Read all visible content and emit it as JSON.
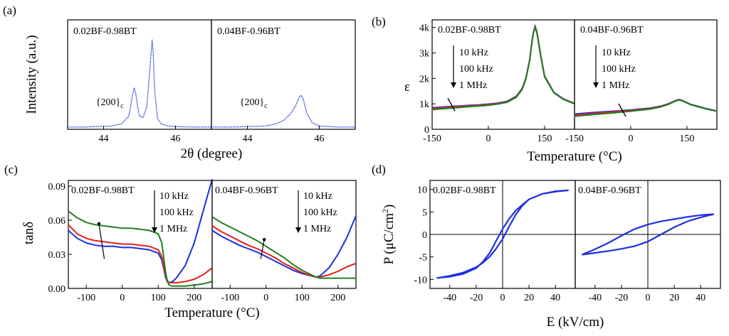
{
  "figure": {
    "panel_tags": [
      "(a)",
      "(b)",
      "(c)",
      "(d)"
    ]
  },
  "chart_data": [
    {
      "panel": "(a)",
      "type": "line",
      "ylabel": "Intensity (a.u.)",
      "xlabel": "2θ (degree)",
      "xlim": [
        43,
        47
      ],
      "ylim": [
        0,
        1
      ],
      "xticks": [
        "44",
        "46"
      ],
      "series_color": "#1f2fe0",
      "subplots": [
        {
          "label": "0.02BF-0.98BT",
          "annotation": {
            "base": "{200}",
            "sub": "c",
            "x": 44.5,
            "y": 0.22
          },
          "series": [
            {
              "name": "intensity",
              "x": [
                43.0,
                43.4,
                43.8,
                44.2,
                44.5,
                44.7,
                44.8,
                44.85,
                44.9,
                44.95,
                45.0,
                45.1,
                45.2,
                45.3,
                45.35,
                45.38,
                45.42,
                45.5,
                45.6,
                45.8,
                46.0,
                46.5,
                47.0
              ],
              "y": [
                0.02,
                0.02,
                0.025,
                0.03,
                0.05,
                0.12,
                0.3,
                0.38,
                0.32,
                0.2,
                0.12,
                0.11,
                0.2,
                0.6,
                0.82,
                0.7,
                0.35,
                0.1,
                0.05,
                0.03,
                0.025,
                0.02,
                0.02
              ]
            }
          ]
        },
        {
          "label": "0.04BF-0.96BT",
          "annotation": {
            "base": "{200}",
            "sub": "c",
            "x": 44.5,
            "y": 0.22
          },
          "series": [
            {
              "name": "intensity",
              "x": [
                43.0,
                43.5,
                44.0,
                44.5,
                44.8,
                45.0,
                45.2,
                45.35,
                45.45,
                45.5,
                45.55,
                45.65,
                45.8,
                46.0,
                46.5,
                47.0
              ],
              "y": [
                0.02,
                0.02,
                0.025,
                0.03,
                0.05,
                0.08,
                0.14,
                0.22,
                0.3,
                0.31,
                0.28,
                0.15,
                0.06,
                0.03,
                0.02,
                0.02
              ]
            }
          ]
        }
      ]
    },
    {
      "panel": "(b)",
      "type": "line",
      "ylabel": "ε",
      "xlabel": "Temperature (°C)",
      "xlim": [
        -150,
        230
      ],
      "ylim": [
        0,
        4300
      ],
      "xticks": [
        "-150",
        "0",
        "150",
        "-150",
        "0",
        "150"
      ],
      "yticks": [
        "0",
        "1k",
        "2k",
        "3k",
        "4k"
      ],
      "frequencies": [
        "10 kHz",
        "100 kHz",
        "1 MHz"
      ],
      "series_colors": [
        "#1f2fe0",
        "#e02020",
        "#208020"
      ],
      "subplots": [
        {
          "label": "0.02BF-0.98BT",
          "x": [
            -150,
            -125,
            -100,
            -75,
            -50,
            -25,
            0,
            25,
            50,
            75,
            90,
            100,
            110,
            115,
            120,
            125,
            130,
            140,
            150,
            175,
            200,
            230
          ],
          "series": [
            {
              "name": "10 kHz",
              "values": [
                850,
                875,
                895,
                920,
                940,
                960,
                990,
                1030,
                1100,
                1300,
                1600,
                2000,
                2700,
                3300,
                3800,
                4050,
                3800,
                2900,
                2100,
                1450,
                1200,
                1020
              ]
            },
            {
              "name": "100 kHz",
              "values": [
                820,
                845,
                870,
                895,
                920,
                940,
                970,
                1010,
                1080,
                1280,
                1580,
                1980,
                2680,
                3280,
                3780,
                4030,
                3780,
                2880,
                2080,
                1440,
                1190,
                1010
              ]
            },
            {
              "name": "1 MHz",
              "values": [
                770,
                800,
                830,
                860,
                890,
                915,
                945,
                990,
                1060,
                1260,
                1560,
                1960,
                2660,
                3260,
                3760,
                4010,
                3760,
                2860,
                2070,
                1430,
                1180,
                1000
              ]
            }
          ]
        },
        {
          "label": "0.04BF-0.96BT",
          "x": [
            -150,
            -100,
            -50,
            0,
            50,
            80,
            100,
            120,
            130,
            140,
            160,
            200,
            230
          ],
          "series": [
            {
              "name": "10 kHz",
              "values": [
                600,
                660,
                710,
                760,
                830,
                910,
                1000,
                1130,
                1170,
                1120,
                980,
                820,
                720
              ]
            },
            {
              "name": "100 kHz",
              "values": [
                560,
                620,
                680,
                740,
                810,
                900,
                990,
                1120,
                1160,
                1110,
                970,
                810,
                715
              ]
            },
            {
              "name": "1 MHz",
              "values": [
                510,
                580,
                640,
                710,
                790,
                880,
                980,
                1110,
                1150,
                1100,
                965,
                805,
                710
              ]
            }
          ]
        }
      ]
    },
    {
      "panel": "(c)",
      "type": "line",
      "ylabel": "tanδ",
      "xlabel": "Temperature (°C)",
      "xlim": [
        -150,
        250
      ],
      "ylim": [
        0,
        0.095
      ],
      "xticks": [
        "-100",
        "0",
        "100",
        "200",
        "-100",
        "0",
        "100",
        "200"
      ],
      "yticks": [
        "0.00",
        "0.03",
        "0.06",
        "0.09"
      ],
      "frequencies": [
        "10 kHz",
        "100 kHz",
        "1 MHz"
      ],
      "series_colors": [
        "#1f2fe0",
        "#e02020",
        "#208020"
      ],
      "subplots": [
        {
          "label": "0.02BF-0.98BT",
          "x": [
            -150,
            -125,
            -100,
            -75,
            -50,
            -25,
            0,
            25,
            50,
            75,
            100,
            110,
            115,
            120,
            125,
            130,
            140,
            150,
            175,
            200,
            225,
            250
          ],
          "series": [
            {
              "name": "10 kHz",
              "values": [
                0.051,
                0.044,
                0.04,
                0.038,
                0.037,
                0.037,
                0.036,
                0.036,
                0.035,
                0.034,
                0.031,
                0.025,
                0.018,
                0.01,
                0.006,
                0.005,
                0.006,
                0.009,
                0.02,
                0.04,
                0.068,
                0.096
              ]
            },
            {
              "name": "100 kHz",
              "values": [
                0.056,
                0.048,
                0.044,
                0.042,
                0.041,
                0.04,
                0.039,
                0.039,
                0.038,
                0.037,
                0.034,
                0.028,
                0.02,
                0.012,
                0.007,
                0.005,
                0.005,
                0.005,
                0.006,
                0.008,
                0.012,
                0.018
              ]
            },
            {
              "name": "1 MHz",
              "values": [
                0.068,
                0.062,
                0.058,
                0.056,
                0.055,
                0.054,
                0.053,
                0.053,
                0.052,
                0.051,
                0.048,
                0.04,
                0.028,
                0.015,
                0.007,
                0.003,
                0.002,
                0.002,
                0.002,
                0.003,
                0.004,
                0.006
              ]
            }
          ]
        },
        {
          "label": "0.04BF-0.96BT",
          "x": [
            -150,
            -125,
            -100,
            -75,
            -50,
            -25,
            0,
            25,
            50,
            75,
            100,
            125,
            140,
            150,
            175,
            200,
            225,
            250
          ],
          "series": [
            {
              "name": "10 kHz",
              "values": [
                0.051,
                0.046,
                0.042,
                0.038,
                0.035,
                0.032,
                0.028,
                0.024,
                0.02,
                0.016,
                0.013,
                0.011,
                0.01,
                0.011,
                0.018,
                0.03,
                0.045,
                0.064
              ]
            },
            {
              "name": "100 kHz",
              "values": [
                0.055,
                0.05,
                0.046,
                0.042,
                0.038,
                0.035,
                0.031,
                0.027,
                0.022,
                0.018,
                0.014,
                0.011,
                0.01,
                0.01,
                0.012,
                0.015,
                0.019,
                0.022
              ]
            },
            {
              "name": "1 MHz",
              "values": [
                0.063,
                0.058,
                0.054,
                0.05,
                0.046,
                0.042,
                0.037,
                0.032,
                0.027,
                0.021,
                0.016,
                0.012,
                0.01,
                0.009,
                0.009,
                0.009,
                0.009,
                0.009
              ]
            }
          ]
        }
      ]
    },
    {
      "panel": "(d)",
      "type": "line",
      "ylabel_base": "P (μC/cm",
      "ylabel_sup": "2",
      "ylabel_end": ")",
      "xlabel": "E (kV/cm)",
      "xlim": [
        -55,
        55
      ],
      "ylim": [
        -12,
        12
      ],
      "xticks": [
        "-40",
        "-20",
        "0",
        "20",
        "40",
        "-40",
        "-20",
        "0",
        "20",
        "40"
      ],
      "yticks": [
        "-10",
        "-5",
        "0",
        "5",
        "10"
      ],
      "series_color": "#1f2fe0",
      "subplots": [
        {
          "label": "0.02BF-0.98BT",
          "series": [
            {
              "name": "P-E loop",
              "x": [
                -50,
                -40,
                -30,
                -20,
                -15,
                -10,
                -5,
                0,
                5,
                10,
                15,
                20,
                30,
                40,
                50,
                40,
                30,
                20,
                15,
                10,
                5,
                0,
                -5,
                -10,
                -15,
                -20,
                -30,
                -40,
                -50
              ],
              "y": [
                -9.7,
                -9.2,
                -8.5,
                -7.3,
                -6.3,
                -5.0,
                -3.2,
                -1.0,
                1.8,
                4.4,
                6.4,
                7.8,
                9.0,
                9.5,
                9.8,
                9.6,
                9.0,
                7.8,
                6.6,
                5.3,
                3.5,
                1.2,
                -1.5,
                -4.2,
                -6.1,
                -7.5,
                -8.8,
                -9.4,
                -9.7
              ]
            }
          ]
        },
        {
          "label": "0.04BF-0.96BT",
          "series": [
            {
              "name": "P-E loop",
              "x": [
                -50,
                -40,
                -30,
                -20,
                -10,
                0,
                10,
                20,
                30,
                40,
                50,
                40,
                30,
                20,
                10,
                0,
                -10,
                -20,
                -30,
                -40,
                -50
              ],
              "y": [
                -4.5,
                -4.1,
                -3.7,
                -3.2,
                -2.6,
                -1.6,
                0.0,
                1.6,
                2.9,
                3.8,
                4.5,
                4.3,
                3.9,
                3.4,
                2.9,
                2.2,
                1.2,
                -0.3,
                -1.9,
                -3.3,
                -4.5
              ]
            }
          ]
        }
      ]
    }
  ]
}
